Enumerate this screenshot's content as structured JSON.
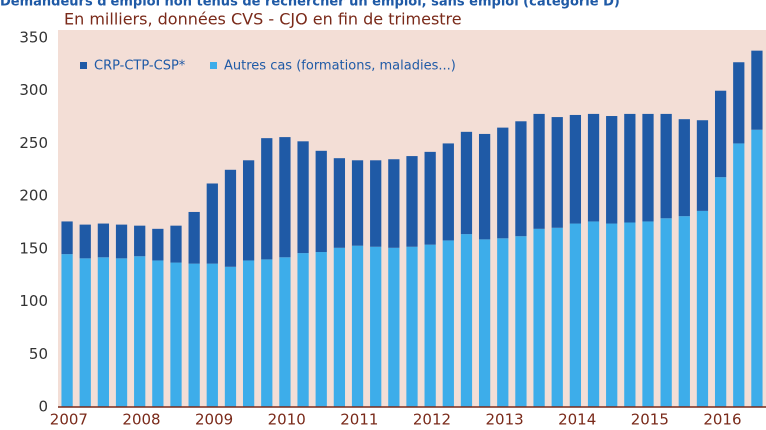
{
  "chart_data": {
    "type": "stacked_bar",
    "title": "Demandeurs d'emploi non tenus de rechercher un emploi, sans emploi (catégorie D)",
    "subtitle": "En milliers, données CVS - CJO en fin de trimestre",
    "categories": [
      "2007",
      null,
      null,
      null,
      "2008",
      null,
      null,
      null,
      "2009",
      null,
      null,
      null,
      "2010",
      null,
      null,
      null,
      "2011",
      null,
      null,
      null,
      "2012",
      null,
      null,
      null,
      "2013",
      null,
      null,
      null,
      "2014",
      null,
      null,
      null,
      "2015",
      null,
      null,
      null,
      "2016",
      null,
      null
    ],
    "series": [
      {
        "name": "Autres cas (formations,  maladies...)",
        "color": "#3dadea",
        "values": [
          145,
          141,
          142,
          141,
          143,
          139,
          137,
          136,
          136,
          133,
          139,
          140,
          142,
          146,
          147,
          151,
          153,
          152,
          151,
          152,
          154,
          158,
          164,
          159,
          160,
          162,
          169,
          170,
          174,
          176,
          174,
          175,
          176,
          179,
          181,
          186,
          218,
          250,
          263
        ]
      },
      {
        "name": "CRP-CTP-CSP*",
        "color": "#1f5aa6",
        "values": [
          31,
          32,
          32,
          32,
          29,
          30,
          35,
          49,
          76,
          92,
          95,
          115,
          114,
          106,
          96,
          85,
          81,
          82,
          84,
          86,
          88,
          92,
          97,
          100,
          105,
          109,
          109,
          105,
          103,
          102,
          102,
          103,
          102,
          99,
          92,
          86,
          82,
          77,
          75
        ]
      }
    ],
    "ylim": [
      0,
      350
    ],
    "yticks": [
      0,
      50,
      100,
      150,
      200,
      250,
      300,
      350
    ],
    "stacked": true,
    "grid": false
  }
}
